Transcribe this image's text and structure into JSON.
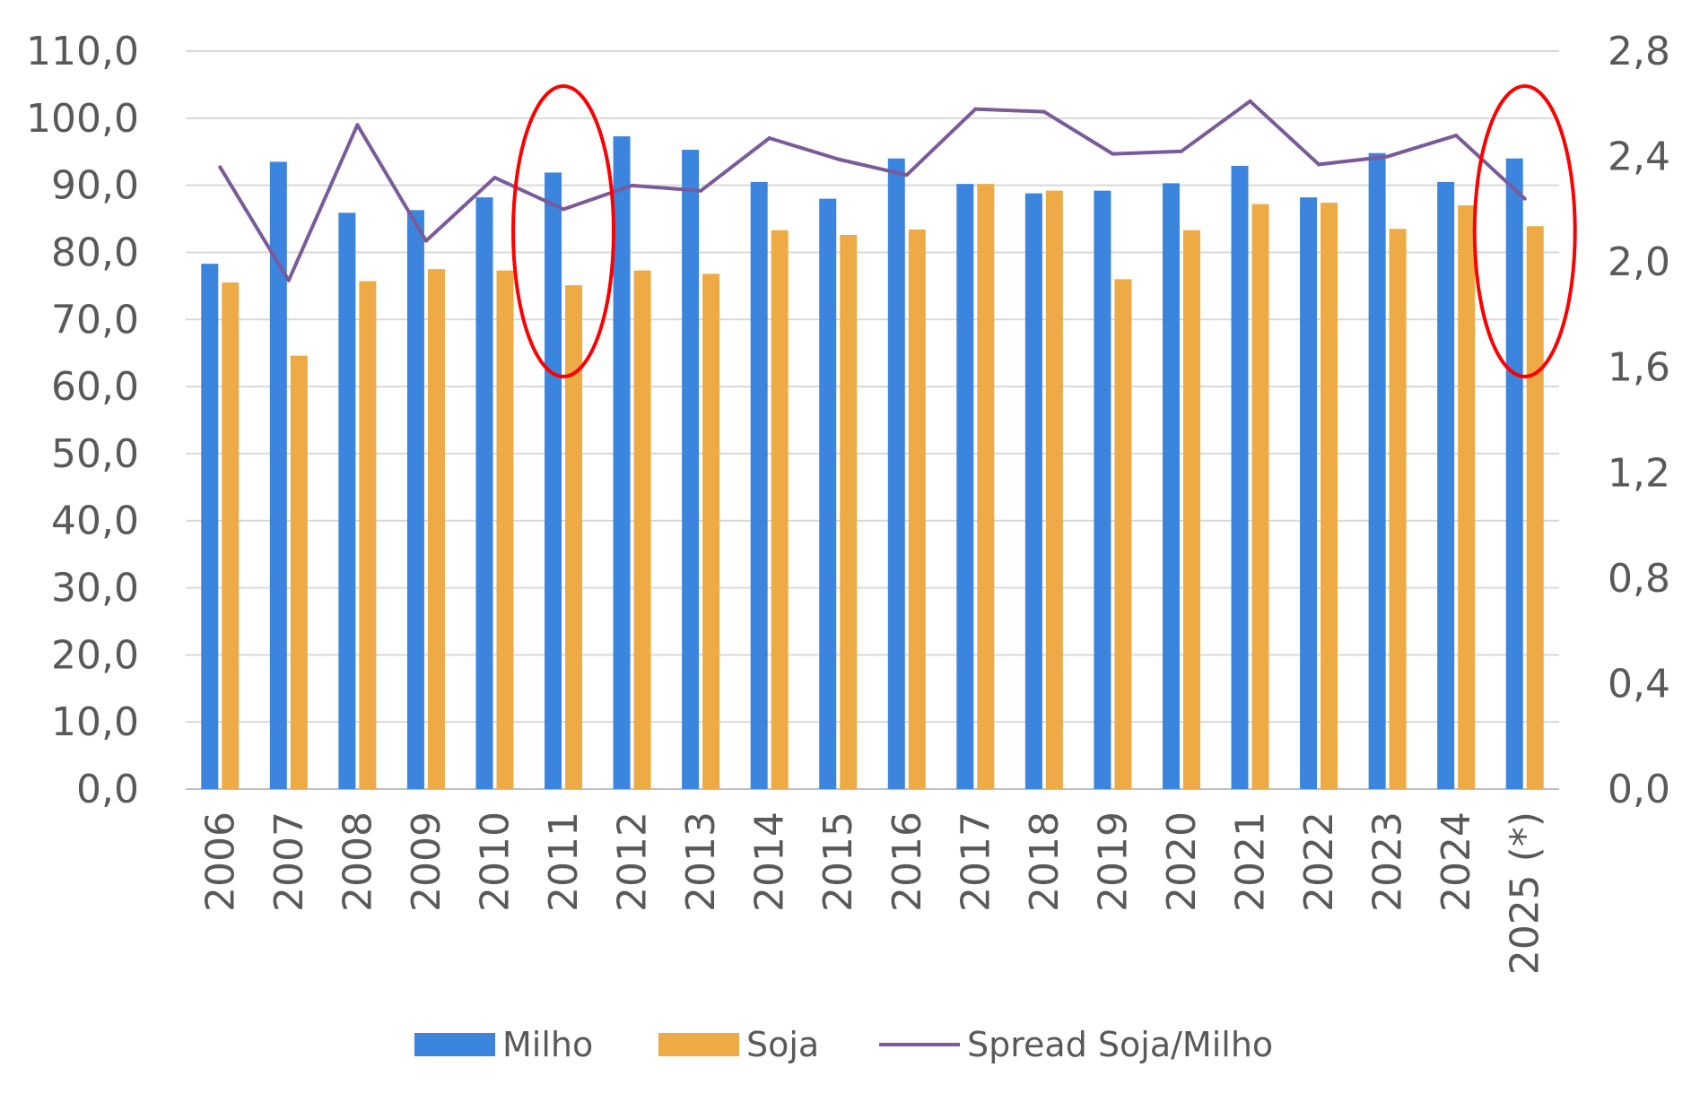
{
  "chart_data": {
    "type": "bar",
    "categories": [
      "2006",
      "2007",
      "2008",
      "2009",
      "2010",
      "2011",
      "2012",
      "2013",
      "2014",
      "2015",
      "2016",
      "2017",
      "2018",
      "2019",
      "2020",
      "2021",
      "2022",
      "2023",
      "2024",
      "2025 (*)"
    ],
    "series": [
      {
        "name": "Milho",
        "type": "bar",
        "axis": "left",
        "color": "#3C85DE",
        "values": [
          78.3,
          93.5,
          85.9,
          86.3,
          88.2,
          91.9,
          97.3,
          95.3,
          90.5,
          88.0,
          94.0,
          90.2,
          88.8,
          89.2,
          90.3,
          92.9,
          88.2,
          94.8,
          90.5,
          94.0
        ]
      },
      {
        "name": "Soja",
        "type": "bar",
        "axis": "left",
        "color": "#EDAA45",
        "values": [
          75.5,
          64.6,
          75.7,
          77.5,
          77.3,
          75.1,
          77.3,
          76.8,
          83.3,
          82.6,
          83.4,
          90.2,
          89.2,
          76.0,
          83.3,
          87.2,
          87.4,
          83.5,
          87.0,
          83.9
        ]
      },
      {
        "name": "Spread Soja/Milho",
        "type": "line",
        "axis": "right",
        "color": "#7A5A9A",
        "values": [
          2.36,
          1.93,
          2.52,
          2.08,
          2.32,
          2.2,
          2.29,
          2.27,
          2.47,
          2.39,
          2.33,
          2.58,
          2.57,
          2.41,
          2.42,
          2.61,
          2.37,
          2.4,
          2.48,
          2.24
        ]
      }
    ],
    "y_left": {
      "lim": [
        0,
        110
      ],
      "ticks": [
        "0,0",
        "10,0",
        "20,0",
        "30,0",
        "40,0",
        "50,0",
        "60,0",
        "70,0",
        "80,0",
        "90,0",
        "100,0",
        "110,0"
      ]
    },
    "y_right": {
      "lim": [
        0,
        2.8
      ],
      "ticks": [
        "0,0",
        "0,4",
        "0,8",
        "1,2",
        "1,6",
        "2,0",
        "2,4",
        "2,8"
      ]
    },
    "annotations": [
      {
        "type": "ellipse",
        "category": "2011",
        "color": "#FF0000"
      },
      {
        "type": "ellipse",
        "category": "2025 (*)",
        "color": "#FF0000"
      }
    ],
    "grid": true,
    "legend": "bottom"
  }
}
